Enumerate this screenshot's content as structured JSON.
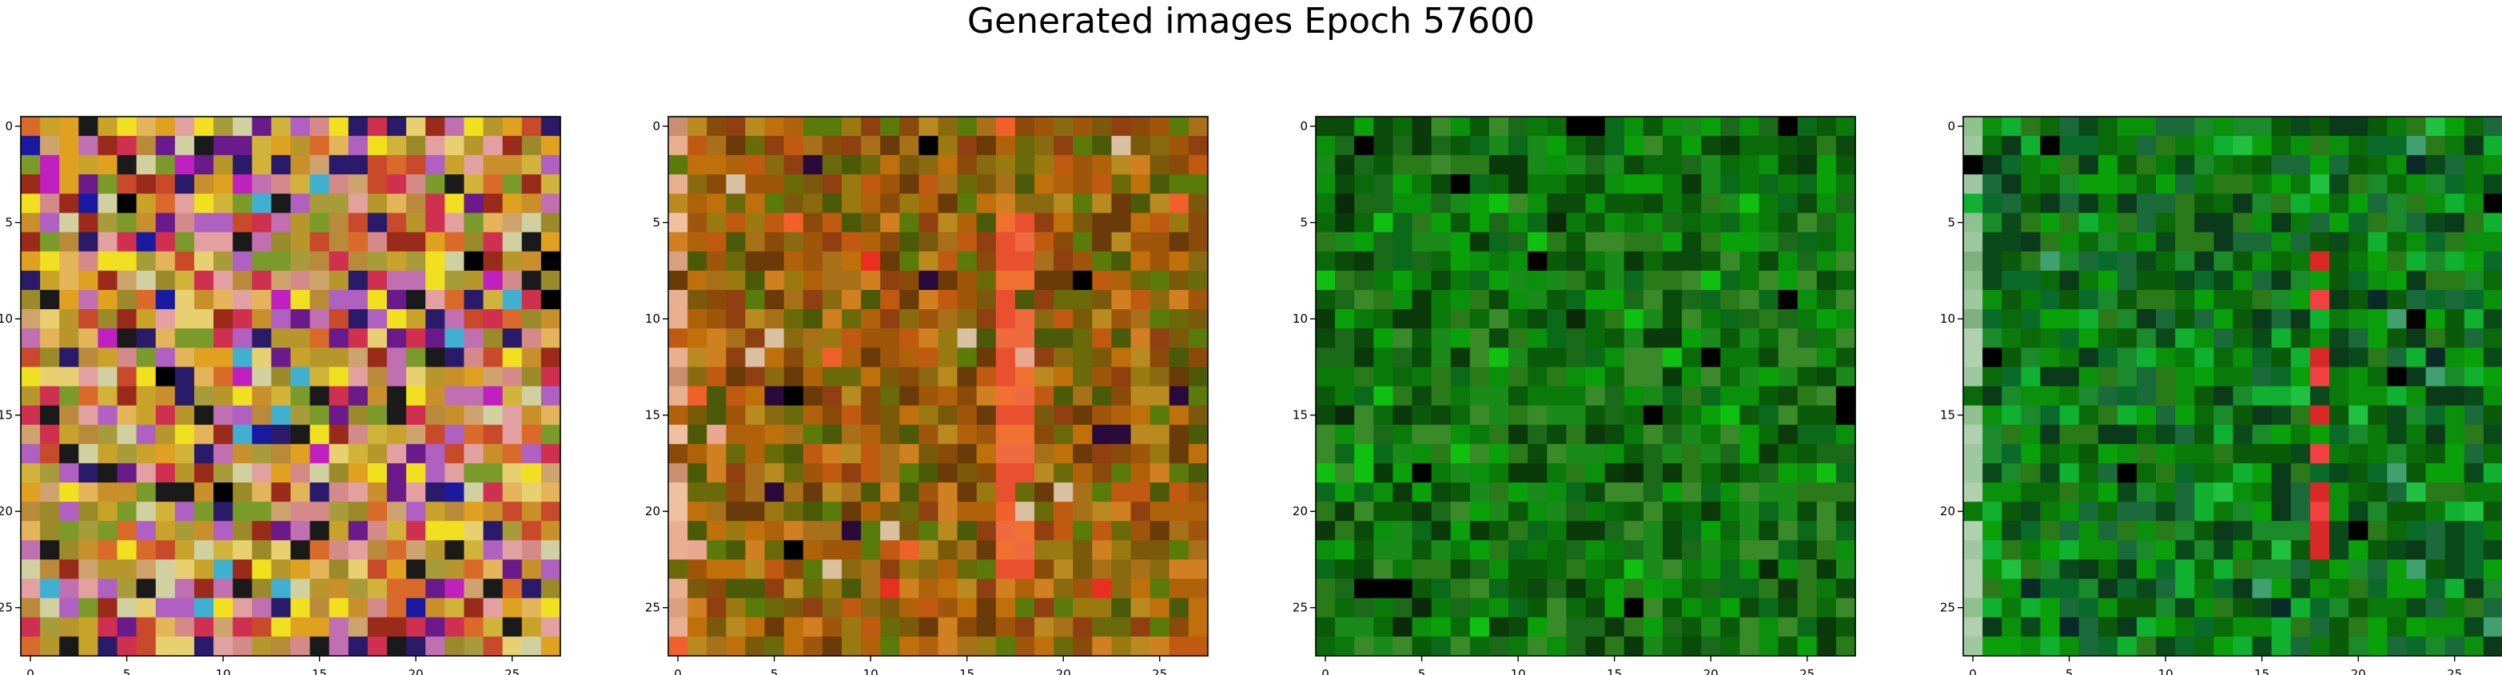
{
  "figure": {
    "title": "Generated images Epoch 57600"
  },
  "chart_data": [
    {
      "type": "heatmap",
      "title": "",
      "xlabel": "",
      "ylabel": "",
      "grid_size": [
        28,
        28
      ],
      "xlim": [
        -0.5,
        27.5
      ],
      "ylim": [
        27.5,
        -0.5
      ],
      "xticks": [
        0,
        5,
        10,
        15,
        20,
        25
      ],
      "yticks": [
        0,
        5,
        10,
        15,
        20,
        25
      ],
      "palette": [
        "#c9a22a",
        "#d2b33a",
        "#b7962b",
        "#e0a020",
        "#c98f2a",
        "#b98a3a",
        "#a89b3a",
        "#d96a2a",
        "#c84a2a",
        "#e3b45a",
        "#cfa36d",
        "#9a8a2a",
        "#7a9a2a",
        "#e3a0a0",
        "#d58a8a",
        "#c070b0",
        "#b060c0",
        "#6a1a8a",
        "#1a1a1a",
        "#2a1a6a",
        "#d03050",
        "#f0e020",
        "#e8d070",
        "#9a2a1a",
        "#d0d0a0"
      ],
      "accent_colors": [
        "#000000",
        "#1a1aa0",
        "#c020c0",
        "#40b0d0"
      ]
    },
    {
      "type": "heatmap",
      "title": "",
      "xlabel": "",
      "ylabel": "",
      "grid_size": [
        28,
        28
      ],
      "xlim": [
        -0.5,
        27.5
      ],
      "ylim": [
        27.5,
        -0.5
      ],
      "xticks": [
        0,
        5,
        10,
        15,
        20,
        25
      ],
      "yticks": [
        0,
        5,
        10,
        15,
        20,
        25
      ],
      "palette": [
        "#a0560a",
        "#8a4a0a",
        "#c0700a",
        "#b0620a",
        "#6a6a0a",
        "#5a7a0a",
        "#7a5a0a",
        "#d08020",
        "#904010",
        "#a87018",
        "#4a5a08",
        "#c05a10",
        "#8a6a10",
        "#6a3a08",
        "#b88a20",
        "#9a7a10"
      ],
      "accent_colors": [
        "#000000",
        "#2a0a3a",
        "#e83020",
        "#f0602a",
        "#e8a890",
        "#d8c0a0"
      ],
      "stripe_columns": [
        17,
        18
      ],
      "stripe_colors": [
        "#f07030",
        "#e85030",
        "#f06a40"
      ],
      "edge_column": 0,
      "edge_colors": [
        "#e8b090",
        "#d8a080",
        "#f0c0a0",
        "#c89070"
      ]
    },
    {
      "type": "heatmap",
      "title": "",
      "xlabel": "",
      "ylabel": "",
      "grid_size": [
        28,
        28
      ],
      "xlim": [
        -0.5,
        27.5
      ],
      "ylim": [
        27.5,
        -0.5
      ],
      "xticks": [
        0,
        5,
        10,
        15,
        20,
        25
      ],
      "yticks": [
        0,
        5,
        10,
        15,
        20,
        25
      ],
      "palette": [
        "#0a6a0a",
        "#0a7a0a",
        "#0a5a0a",
        "#1a8a1a",
        "#0a900a",
        "#0a4a0a",
        "#2a7a1a",
        "#0aa00a",
        "#1a6a1a",
        "#0a6a1a",
        "#3a8a2a",
        "#0a3a0a"
      ],
      "accent_colors": [
        "#000000",
        "#0a2a0a",
        "#10c010"
      ]
    },
    {
      "type": "heatmap",
      "title": "",
      "xlabel": "",
      "ylabel": "",
      "grid_size": [
        28,
        28
      ],
      "xlim": [
        -0.5,
        27.5
      ],
      "ylim": [
        27.5,
        -0.5
      ],
      "xticks": [
        0,
        5,
        10,
        15,
        20,
        25
      ],
      "yticks": [
        0,
        5,
        10,
        15,
        20,
        25
      ],
      "palette": [
        "#0a6a0a",
        "#0a7a0a",
        "#0a5a0a",
        "#1a8a2a",
        "#0a900a",
        "#0a4a1a",
        "#2a7a1a",
        "#0aa00a",
        "#1a6a3a",
        "#0a6a2a",
        "#10b030",
        "#0a3a1a"
      ],
      "accent_colors": [
        "#000000",
        "#0a2a2a",
        "#20c040",
        "#40a070"
      ],
      "stripe_columns": [
        18
      ],
      "stripe_colors": [
        "#e83030",
        "#d82828",
        "#f04040"
      ],
      "edge_column": 0,
      "edge_colors": [
        "#90c090",
        "#a0c8a0",
        "#80b080",
        "#b0d0b0"
      ]
    }
  ]
}
